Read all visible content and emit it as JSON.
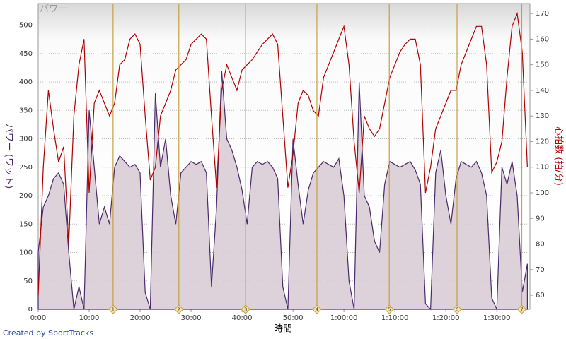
{
  "chart_data": {
    "type": "power-heartrate",
    "title": "パワー",
    "y_label": "パワー (ワット)",
    "y2_label": "心拍数 (拍/分)",
    "x_label": "時間",
    "footer": "Created by SportTracks",
    "x": [
      0,
      1,
      2,
      3,
      4,
      5,
      6,
      7,
      8,
      9,
      10,
      11,
      12,
      13,
      14,
      15,
      16,
      17,
      18,
      19,
      20,
      21,
      22,
      23,
      24,
      25,
      26,
      27,
      28,
      29,
      30,
      31,
      32,
      33,
      34,
      35,
      36,
      37,
      38,
      39,
      40,
      41,
      42,
      43,
      44,
      45,
      46,
      47,
      48,
      49,
      50,
      51,
      52,
      53,
      54,
      55,
      56,
      57,
      58,
      59,
      60,
      61,
      62,
      63,
      64,
      65,
      66,
      67,
      68,
      69,
      70,
      71,
      72,
      73,
      74,
      75,
      76,
      77,
      78,
      79,
      80,
      81,
      82,
      83,
      84,
      85,
      86,
      87,
      88,
      89,
      90,
      91,
      92,
      93,
      94,
      95,
      96
    ],
    "series": [
      {
        "color": "#4b2a6b",
        "fill": "#d9ccd6",
        "values": [
          100,
          180,
          200,
          230,
          240,
          220,
          100,
          0,
          40,
          0,
          350,
          250,
          150,
          180,
          150,
          250,
          270,
          260,
          250,
          255,
          240,
          30,
          0,
          380,
          250,
          300,
          200,
          150,
          240,
          250,
          260,
          255,
          260,
          240,
          40,
          180,
          420,
          300,
          280,
          250,
          210,
          150,
          250,
          260,
          255,
          260,
          250,
          230,
          40,
          0,
          300,
          220,
          150,
          210,
          240,
          250,
          260,
          255,
          250,
          265,
          200,
          50,
          0,
          400,
          200,
          180,
          120,
          100,
          220,
          260,
          255,
          250,
          255,
          260,
          245,
          220,
          10,
          0,
          240,
          280,
          200,
          150,
          230,
          260,
          255,
          250,
          260,
          240,
          200,
          20,
          0,
          250,
          220,
          260,
          200,
          30,
          80
        ]
      },
      {
        "color": "#b00000",
        "axis": "y2",
        "values": [
          60,
          110,
          140,
          125,
          112,
          118,
          80,
          130,
          150,
          160,
          100,
          135,
          140,
          135,
          130,
          135,
          150,
          152,
          160,
          162,
          158,
          130,
          105,
          110,
          130,
          135,
          140,
          148,
          150,
          152,
          158,
          160,
          162,
          160,
          130,
          102,
          140,
          150,
          145,
          140,
          148,
          150,
          152,
          155,
          158,
          160,
          162,
          158,
          130,
          102,
          115,
          135,
          140,
          138,
          132,
          130,
          145,
          150,
          155,
          160,
          165,
          150,
          120,
          100,
          130,
          125,
          122,
          125,
          135,
          145,
          150,
          155,
          158,
          160,
          160,
          150,
          100,
          110,
          125,
          130,
          135,
          140,
          140,
          150,
          155,
          160,
          165,
          165,
          150,
          108,
          112,
          120,
          145,
          165,
          170,
          155,
          110
        ]
      }
    ],
    "xlim": [
      0,
      96.5
    ],
    "xticks": [
      {
        "value": 0,
        "label": "0:00"
      },
      {
        "value": 10,
        "label": "10:00"
      },
      {
        "value": 20,
        "label": "20:00"
      },
      {
        "value": 30,
        "label": "30:00"
      },
      {
        "value": 40,
        "label": "40:00"
      },
      {
        "value": 50,
        "label": "50:00"
      },
      {
        "value": 60,
        "label": "1:00:00"
      },
      {
        "value": 70,
        "label": "1:10:00"
      },
      {
        "value": 80,
        "label": "1:20:00"
      },
      {
        "value": 90,
        "label": "1:30:00"
      }
    ],
    "ylim": [
      0,
      538
    ],
    "yticks": [
      0,
      50,
      100,
      150,
      200,
      250,
      300,
      350,
      400,
      450,
      500
    ],
    "y2lim": [
      54.5,
      173.9
    ],
    "y2ticks": [
      60,
      70,
      80,
      90,
      100,
      110,
      120,
      130,
      140,
      150,
      160,
      170
    ],
    "grid": true,
    "laps": {
      "x": [
        14.7,
        27.6,
        40.7,
        54.7,
        68.9,
        82.2,
        94.9
      ],
      "labels": [
        "1",
        "2",
        "3",
        "4",
        "5",
        "6",
        "7"
      ],
      "color": "#c8a040"
    }
  }
}
